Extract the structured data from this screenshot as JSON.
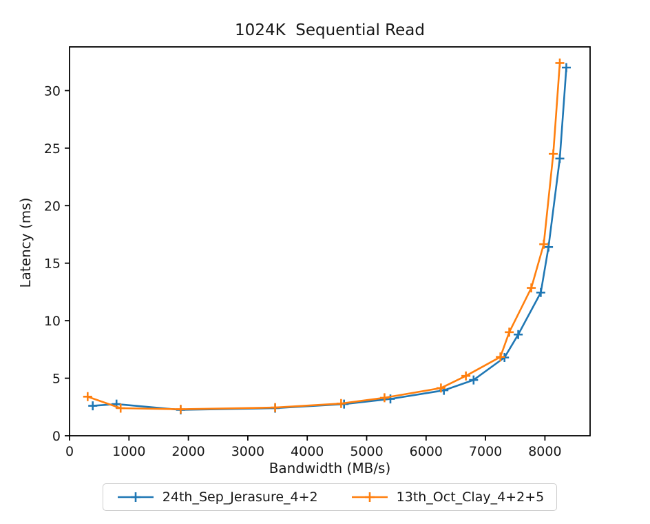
{
  "chart_data": {
    "type": "line",
    "title": "1024K  Sequential Read",
    "xlabel": "Bandwidth (MB/s)",
    "ylabel": "Latency (ms)",
    "xlim": [
      0,
      8760
    ],
    "ylim": [
      0,
      33.8
    ],
    "x_ticks": [
      0,
      1000,
      2000,
      3000,
      4000,
      5000,
      6000,
      7000,
      8000
    ],
    "y_ticks": [
      0,
      5,
      10,
      15,
      20,
      25,
      30
    ],
    "grid": false,
    "marker": "plus",
    "legend_position": "bottom-center",
    "axis_color": "#000000",
    "legend_border_color": "#cccccc",
    "series": [
      {
        "name": "24th_Sep_Jerasure_4+2",
        "color": "#1f77b4",
        "x": [
          390,
          790,
          1870,
          3460,
          4620,
          5400,
          6300,
          6800,
          7320,
          7550,
          7930,
          8060,
          8250,
          8360
        ],
        "y": [
          2.6,
          2.75,
          2.25,
          2.4,
          2.75,
          3.2,
          3.95,
          4.85,
          6.8,
          8.8,
          12.45,
          16.4,
          24.1,
          32.0
        ]
      },
      {
        "name": "13th_Oct_Clay_4+2+5",
        "color": "#ff7f0e",
        "x": [
          305,
          860,
          1870,
          3460,
          4570,
          5300,
          6250,
          6670,
          7250,
          7400,
          7770,
          7980,
          8140,
          8250
        ],
        "y": [
          3.4,
          2.4,
          2.3,
          2.45,
          2.8,
          3.3,
          4.15,
          5.2,
          6.85,
          9.0,
          12.85,
          16.65,
          24.5,
          32.4
        ]
      }
    ]
  }
}
